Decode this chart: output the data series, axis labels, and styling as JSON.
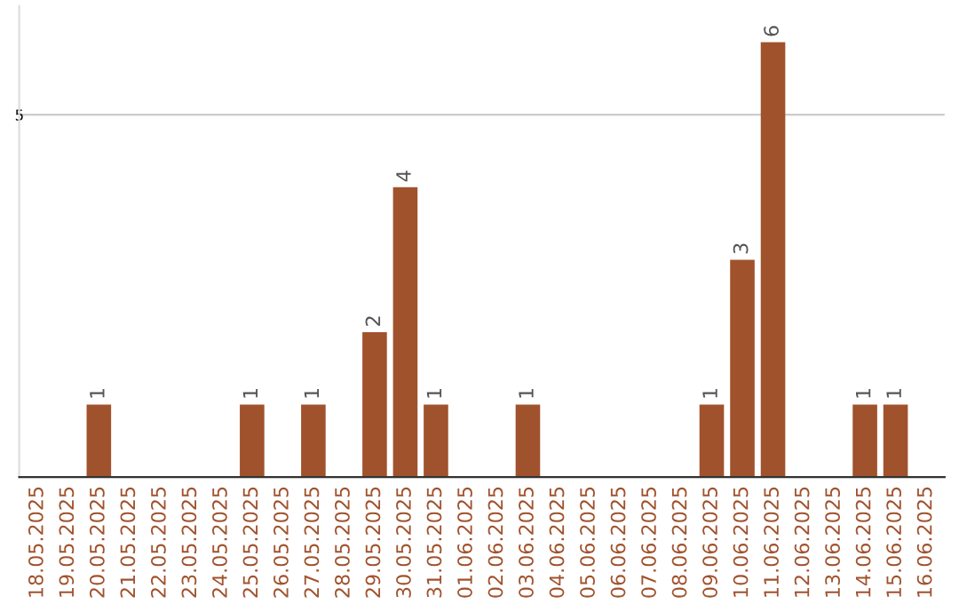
{
  "chart_data": {
    "type": "bar",
    "categories": [
      "18.05.2025",
      "19.05.2025",
      "20.05.2025",
      "21.05.2025",
      "22.05.2025",
      "23.05.2025",
      "24.05.2025",
      "25.05.2025",
      "26.05.2025",
      "27.05.2025",
      "28.05.2025",
      "29.05.2025",
      "30.05.2025",
      "31.05.2025",
      "01.06.2025",
      "02.06.2025",
      "03.06.2025",
      "04.06.2025",
      "05.06.2025",
      "06.06.2025",
      "07.06.2025",
      "08.06.2025",
      "09.06.2025",
      "10.06.2025",
      "11.06.2025",
      "12.06.2025",
      "13.06.2025",
      "14.06.2025",
      "15.06.2025",
      "16.06.2025"
    ],
    "values": [
      0,
      0,
      1,
      0,
      0,
      0,
      0,
      1,
      0,
      1,
      0,
      2,
      4,
      1,
      0,
      0,
      1,
      0,
      0,
      0,
      0,
      0,
      1,
      3,
      6,
      0,
      0,
      1,
      1,
      0
    ],
    "value_labels": [
      null,
      null,
      "1",
      null,
      null,
      null,
      null,
      "1",
      null,
      "1",
      null,
      "2",
      "4",
      "1",
      null,
      null,
      "1",
      null,
      null,
      null,
      null,
      null,
      "1",
      "3",
      "6",
      null,
      null,
      "1",
      "1",
      null
    ],
    "color": "#a0522d",
    "ylim": [
      0,
      6.5
    ],
    "yticks": [
      5
    ],
    "grid": "y"
  }
}
